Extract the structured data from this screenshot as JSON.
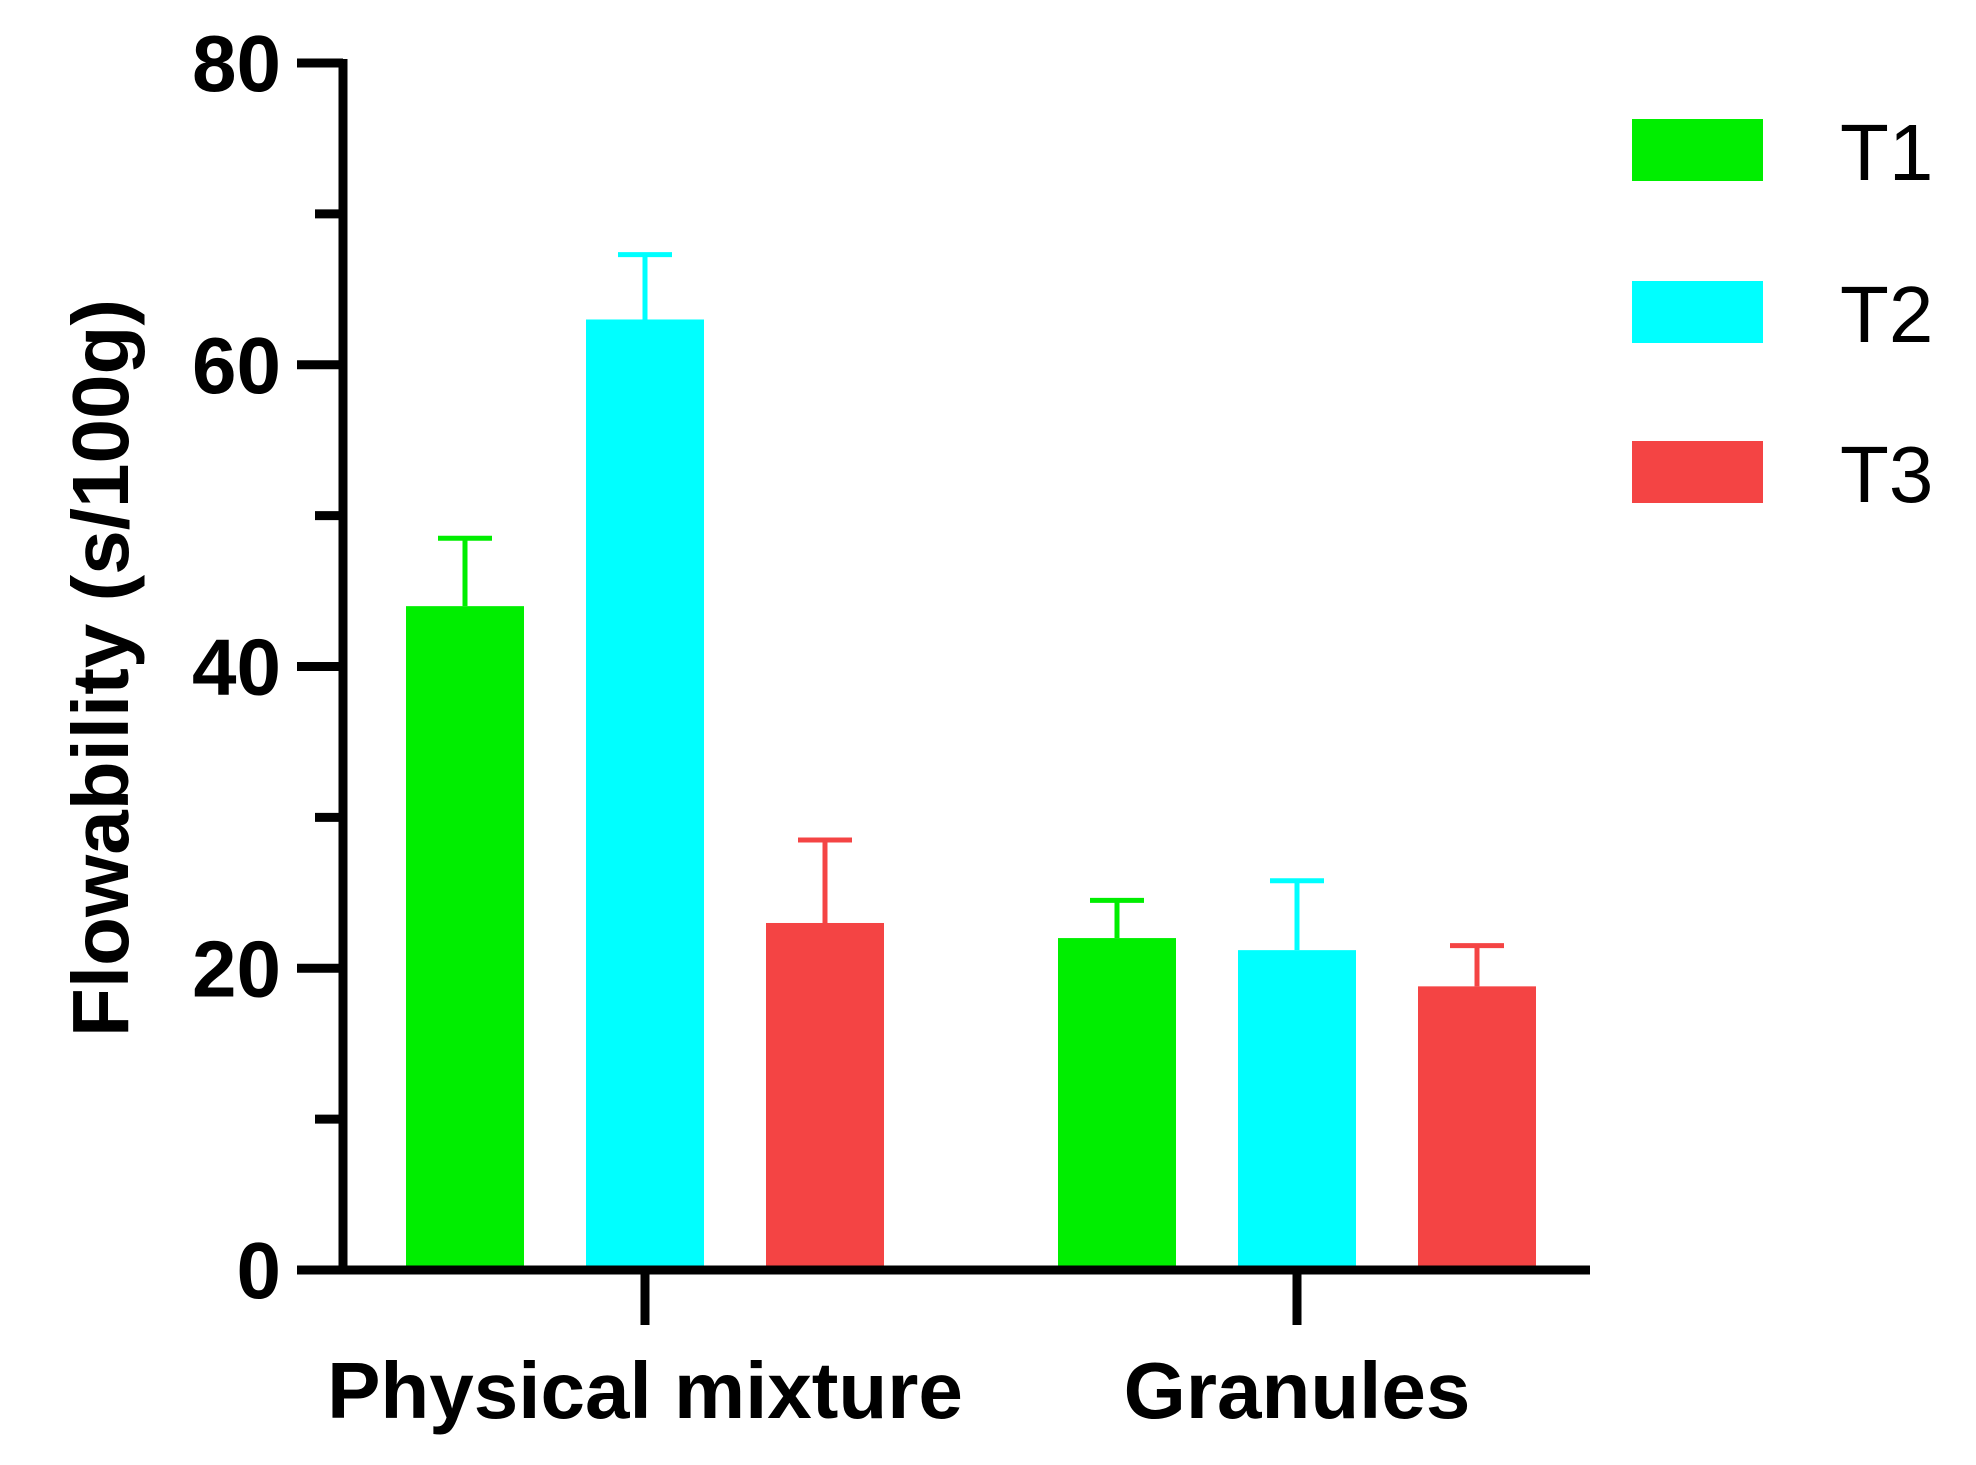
{
  "chart_data": {
    "type": "bar",
    "categories": [
      "Physical mixture",
      "Granules"
    ],
    "series": [
      {
        "name": "T1",
        "color": "#00ee00",
        "values": [
          44,
          22
        ],
        "errors": [
          4.5,
          2.5
        ]
      },
      {
        "name": "T2",
        "color": "#00ffff",
        "values": [
          63,
          21.2
        ],
        "errors": [
          4.3,
          4.6
        ]
      },
      {
        "name": "T3",
        "color": "#f44444",
        "values": [
          23,
          18.8
        ],
        "errors": [
          5.5,
          2.7
        ]
      }
    ],
    "ylabel": "Flowability (s/100g)",
    "ylim": [
      0,
      80
    ],
    "yticks_major": [
      0,
      20,
      40,
      60,
      80
    ],
    "yticks_minor": [
      10,
      30,
      50,
      70
    ],
    "grid": false,
    "legend_position": "top-right"
  }
}
